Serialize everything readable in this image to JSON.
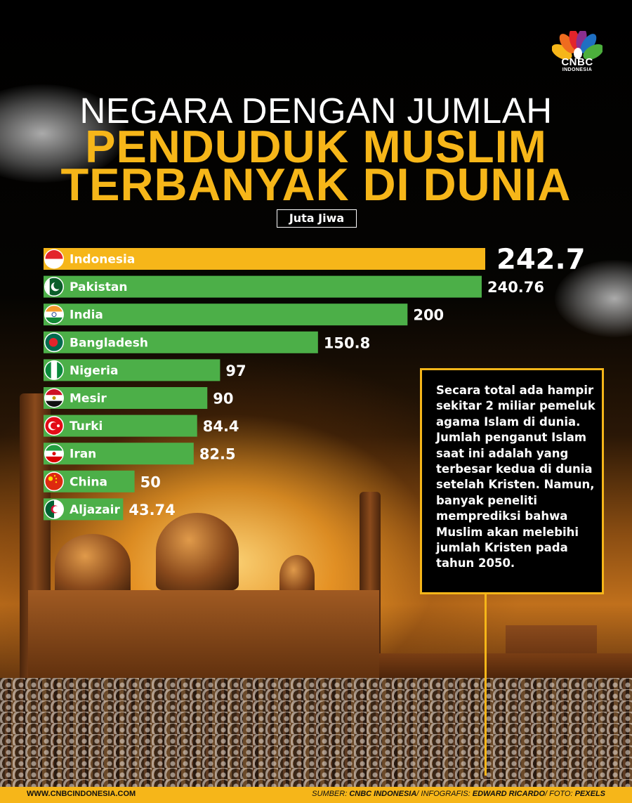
{
  "brand": {
    "logo_text": "CNBC",
    "logo_sub": "INDONESIA"
  },
  "title": {
    "line1": "NEGARA DENGAN JUMLAH",
    "line2": "PENDUDUK MUSLIM",
    "line3": "TERBANYAK DI DUNIA"
  },
  "colors": {
    "accent": "#f6b619",
    "bar_top": "#f6b619",
    "bar": "#4caf48"
  },
  "chart_data": {
    "type": "bar",
    "orientation": "horizontal",
    "unit_label": "Juta Jiwa",
    "categories": [
      "Indonesia",
      "Pakistan",
      "India",
      "Bangladesh",
      "Nigeria",
      "Mesir",
      "Turki",
      "Iran",
      "China",
      "Aljazair"
    ],
    "values": [
      242.7,
      240.76,
      200,
      150.8,
      97,
      90,
      84.4,
      82.5,
      50,
      43.74
    ],
    "value_labels": [
      "242.7",
      "240.76",
      "200",
      "150.8",
      "97",
      "90",
      "84.4",
      "82.5",
      "50",
      "43.74"
    ],
    "flag_icons": [
      "flag-indonesia-icon",
      "flag-pakistan-icon",
      "flag-india-icon",
      "flag-bangladesh-icon",
      "flag-nigeria-icon",
      "flag-egypt-icon",
      "flag-turkey-icon",
      "flag-iran-icon",
      "flag-china-icon",
      "flag-algeria-icon"
    ]
  },
  "callout": {
    "text": "Secara total ada hampir sekitar 2 miliar pemeluk agama Islam di dunia. Jumlah penganut Islam saat ini adalah yang terbesar kedua di dunia setelah Kristen. Namun, banyak peneliti memprediksi bahwa Muslim akan melebihi jumlah Kristen pada tahun 2050."
  },
  "footer": {
    "website": "WWW.CNBCINDONESIA.COM",
    "source_prefix": "SUMBER: ",
    "source": "CNBC INDONESIA",
    "infographic_prefix": "/ INFOGRAFIS: ",
    "infographic": "EDWARD RICARDO",
    "photo_prefix": "/ FOTO: ",
    "photo": "PEXELS"
  }
}
